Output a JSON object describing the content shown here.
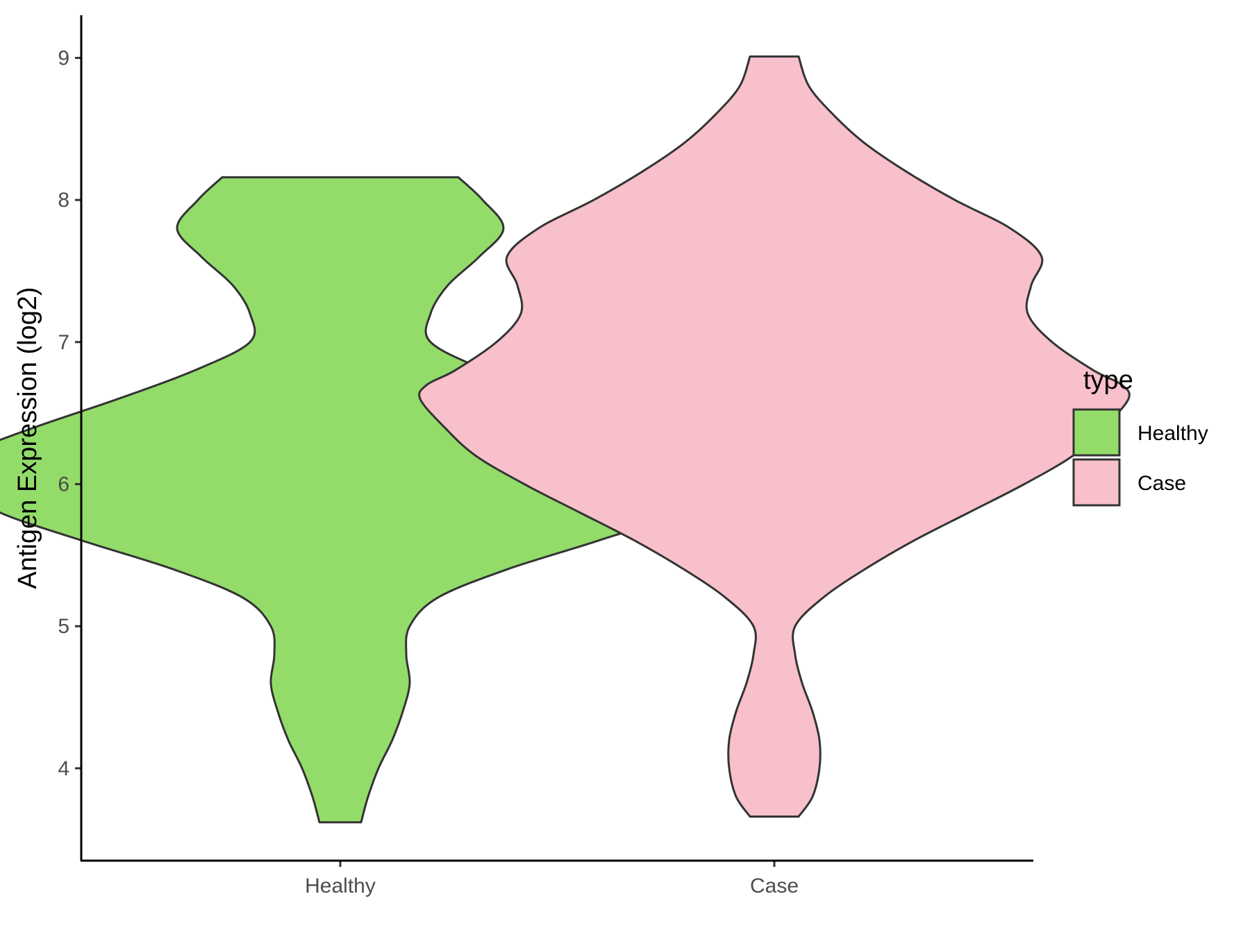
{
  "chart_data": {
    "type": "violin",
    "title": "",
    "xlabel": "",
    "ylabel": "Antigen Expression (log2)",
    "ylim": [
      3.35,
      9.3
    ],
    "yticks": [
      4,
      5,
      6,
      7,
      8,
      9
    ],
    "categories": [
      "Healthy",
      "Case"
    ],
    "legend": {
      "title": "type",
      "position": "right",
      "entries": [
        {
          "label": "Healthy",
          "color": "#93dc6a"
        },
        {
          "label": "Case",
          "color": "#f7c0cb"
        }
      ]
    },
    "series": [
      {
        "category": "Healthy",
        "color": "#93dc6a",
        "min": 3.62,
        "max": 8.16,
        "density_profile": [
          [
            3.62,
            0.03
          ],
          [
            3.8,
            0.04
          ],
          [
            4.0,
            0.055
          ],
          [
            4.2,
            0.075
          ],
          [
            4.4,
            0.09
          ],
          [
            4.6,
            0.1
          ],
          [
            4.8,
            0.095
          ],
          [
            5.0,
            0.1
          ],
          [
            5.2,
            0.14
          ],
          [
            5.4,
            0.24
          ],
          [
            5.6,
            0.37
          ],
          [
            5.8,
            0.49
          ],
          [
            6.0,
            0.555
          ],
          [
            6.08,
            0.56
          ],
          [
            6.2,
            0.545
          ],
          [
            6.4,
            0.44
          ],
          [
            6.6,
            0.32
          ],
          [
            6.8,
            0.21
          ],
          [
            7.0,
            0.13
          ],
          [
            7.2,
            0.13
          ],
          [
            7.4,
            0.155
          ],
          [
            7.6,
            0.2
          ],
          [
            7.8,
            0.235
          ],
          [
            8.0,
            0.205
          ],
          [
            8.16,
            0.17
          ]
        ]
      },
      {
        "category": "Case",
        "color": "#f7c0cb",
        "min": 3.66,
        "max": 9.01,
        "density_profile": [
          [
            3.66,
            0.035
          ],
          [
            3.8,
            0.055
          ],
          [
            4.0,
            0.065
          ],
          [
            4.2,
            0.065
          ],
          [
            4.4,
            0.055
          ],
          [
            4.6,
            0.04
          ],
          [
            4.8,
            0.03
          ],
          [
            5.0,
            0.03
          ],
          [
            5.2,
            0.07
          ],
          [
            5.4,
            0.13
          ],
          [
            5.6,
            0.2
          ],
          [
            5.8,
            0.28
          ],
          [
            6.0,
            0.36
          ],
          [
            6.2,
            0.43
          ],
          [
            6.4,
            0.475
          ],
          [
            6.6,
            0.51
          ],
          [
            6.7,
            0.5
          ],
          [
            6.8,
            0.46
          ],
          [
            7.0,
            0.4
          ],
          [
            7.2,
            0.365
          ],
          [
            7.4,
            0.37
          ],
          [
            7.6,
            0.385
          ],
          [
            7.8,
            0.34
          ],
          [
            8.0,
            0.26
          ],
          [
            8.2,
            0.19
          ],
          [
            8.4,
            0.13
          ],
          [
            8.6,
            0.085
          ],
          [
            8.8,
            0.05
          ],
          [
            9.01,
            0.035
          ]
        ]
      }
    ]
  }
}
